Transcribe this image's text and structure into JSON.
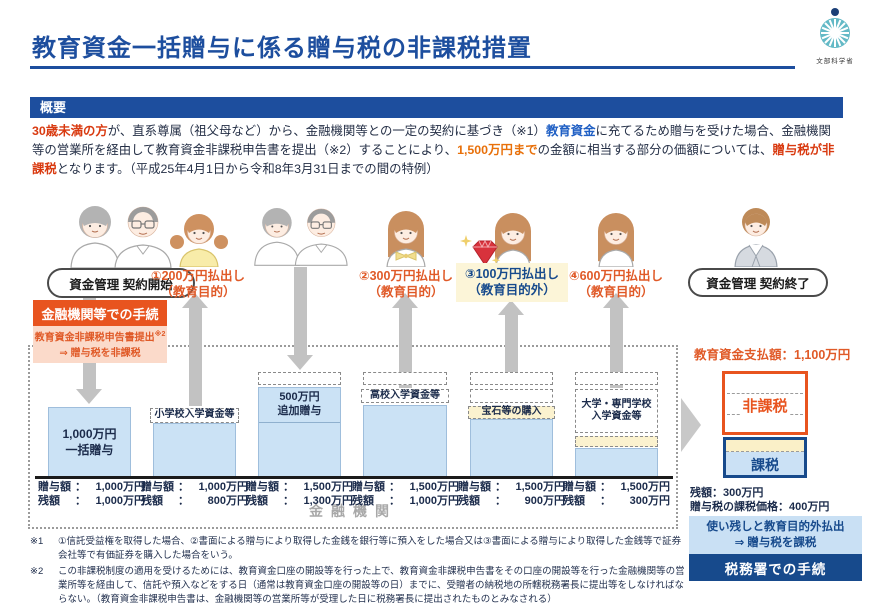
{
  "header": {
    "title": "教育資金一括贈与に係る贈与税の非課税措置",
    "logo_caption": "文部科学省"
  },
  "overview": {
    "heading": "概要",
    "segments": [
      {
        "t": "30歳未満の方",
        "c": "red"
      },
      {
        "t": "が、直系尊属（祖父母など）から、金融機関等との一定の契約に基づき（※1）",
        "c": ""
      },
      {
        "t": "教育資金",
        "c": "blue"
      },
      {
        "t": "に充てるため贈与を受けた場合、金融機関等の営業所を経由して教育資金非課税申告書を提出（※2）することにより、",
        "c": ""
      },
      {
        "t": "1,500万円まで",
        "c": "orange"
      },
      {
        "t": "の金額に相当する部分の価額については、",
        "c": ""
      },
      {
        "t": "贈与税が非課税",
        "c": "red"
      },
      {
        "t": "となります。（平成25年4月1日から令和8年3月31日までの間の特例）",
        "c": ""
      }
    ]
  },
  "actors": {
    "start_pill": "資金管理 契約開始",
    "end_pill": "資金管理 契約終了",
    "payouts": [
      {
        "line1": "①200万円払出し",
        "line2": "（教育目的）"
      },
      {
        "line1": "②300万円払出し",
        "line2": "（教育目的）"
      },
      {
        "line1": "③100万円払出し",
        "line2": "（教育目的外）"
      },
      {
        "line1": "④600万円払出し",
        "line2": "（教育目的）"
      }
    ]
  },
  "procedure_bank": {
    "title": "金融機関等での手続",
    "line1": "教育資金非課税申告書提出",
    "line1_sup": "※2",
    "line2": "⇒ 贈与税を非課税"
  },
  "bank": {
    "name": "金融機関",
    "bars": [
      {
        "body1": "1,000万円",
        "body2": "一括贈与",
        "rows": [
          {
            "label": "贈与額",
            "value": "1,000万円"
          },
          {
            "label": "残額",
            "value": "1,000万円"
          }
        ]
      },
      {
        "top": "小学校入学資金等",
        "rows": [
          {
            "label": "贈与額",
            "value": "1,000万円"
          },
          {
            "label": "残額",
            "value": "800万円"
          }
        ]
      },
      {
        "add1": "500万円",
        "add2": "追加贈与",
        "rows": [
          {
            "label": "贈与額",
            "value": "1,500万円"
          },
          {
            "label": "残額",
            "value": "1,300万円"
          }
        ]
      },
      {
        "top": "高校入学資金等",
        "rows": [
          {
            "label": "贈与額",
            "value": "1,500万円"
          },
          {
            "label": "残額",
            "value": "1,000万円"
          }
        ]
      },
      {
        "top": "宝石等の購入",
        "rows": [
          {
            "label": "贈与額",
            "value": "1,500万円"
          },
          {
            "label": "残額",
            "value": "900万円"
          }
        ]
      },
      {
        "top1": "大学・専門学校",
        "top2": "入学資金等",
        "rows": [
          {
            "label": "贈与額",
            "value": "1,500万円"
          },
          {
            "label": "残額",
            "value": "300万円"
          }
        ]
      }
    ]
  },
  "right_panel": {
    "paid": "教育資金支払額：1,100万円",
    "nontax": "非課税",
    "tax": "課税",
    "balance": "残額：300万円",
    "taxable": "贈与税の課税価格：400万円",
    "note1": "使い残しと教育目的外払出",
    "note2": "⇒ 贈与税を課税",
    "office": "税務署での手続"
  },
  "footnotes": [
    {
      "mark": "※1",
      "text": "①信託受益権を取得した場合、②書面による贈与により取得した金銭を銀行等に預入をした場合又は③書面による贈与により取得した金銭等で証券会社等で有価証券を購入した場合をいう。"
    },
    {
      "mark": "※2",
      "text": "この非課税制度の適用を受けるためには、教育資金口座の開設等を行った上で、教育資金非課税申告書をその口座の開設等を行った金融機関等の営業所等を経由して、信託や預入などをする日（通常は教育資金口座の開設等の日）までに、受贈者の納税地の所轄税務署長に提出等をしなければならない。（教育資金非課税申告書は、金融機関等の営業所等が受理した日に税務署長に提出されたものとみなされる）"
    }
  ],
  "colors": {
    "navy": "#1D4E9E",
    "orange": "#E8541F",
    "red_text": "#D93A10",
    "bar_blue": "#CBE2F5",
    "label_yellow": "#FBF2CF",
    "arrow_gray": "#C2C2C2"
  }
}
